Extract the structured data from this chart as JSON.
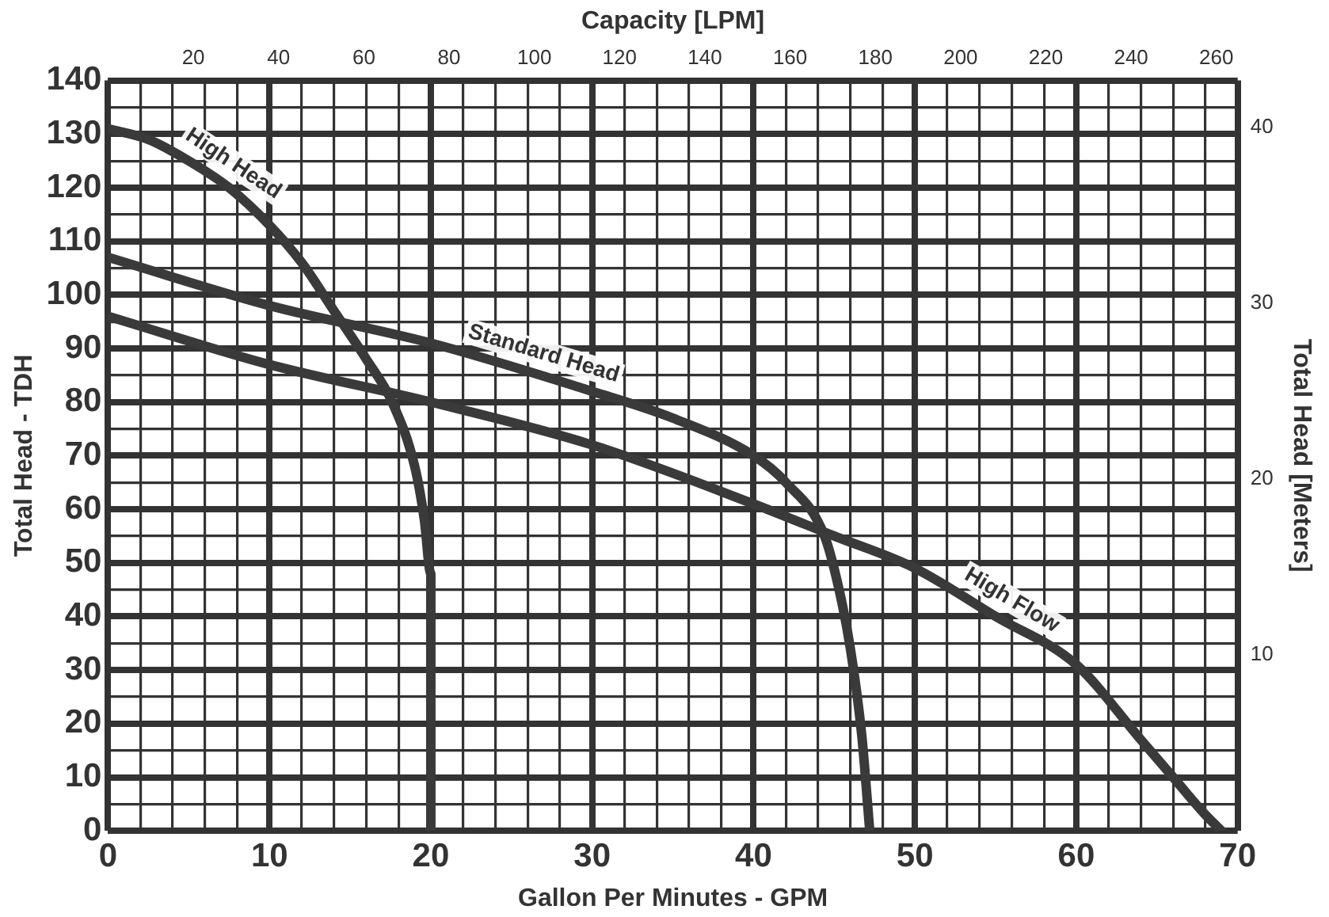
{
  "chart_data": {
    "type": "line",
    "xlabel": "Gallon Per Minutes - GPM",
    "x2label": "Capacity [LPM]",
    "ylabel": "Total Head - TDH",
    "y2label": "Total Head [Meters]",
    "xlim": [
      0,
      70
    ],
    "xticks": [
      0,
      {
        "value": 2,
        "label": null
      },
      {
        "value": 4,
        "label": null
      },
      {
        "value": 6,
        "label": null
      },
      {
        "value": 8,
        "label": null
      },
      10,
      {
        "value": 12,
        "label": null
      },
      {
        "value": 14,
        "label": null
      },
      {
        "value": 16,
        "label": null
      },
      {
        "value": 18,
        "label": null
      },
      20,
      {
        "value": 22,
        "label": null
      },
      {
        "value": 24,
        "label": null
      },
      {
        "value": 26,
        "label": null
      },
      {
        "value": 28,
        "label": null
      },
      30,
      {
        "value": 32,
        "label": null
      },
      {
        "value": 34,
        "label": null
      },
      {
        "value": 36,
        "label": null
      },
      {
        "value": 38,
        "label": null
      },
      40,
      {
        "value": 42,
        "label": null
      },
      {
        "value": 44,
        "label": null
      },
      {
        "value": 46,
        "label": null
      },
      {
        "value": 48,
        "label": null
      },
      50,
      {
        "value": 52,
        "label": null
      },
      {
        "value": 54,
        "label": null
      },
      {
        "value": 56,
        "label": null
      },
      {
        "value": 58,
        "label": null
      },
      60,
      {
        "value": 62,
        "label": null
      },
      {
        "value": 64,
        "label": null
      },
      {
        "value": 66,
        "label": null
      },
      {
        "value": 68,
        "label": null
      },
      70
    ],
    "ylim": [
      0,
      140
    ],
    "yticks": [
      0,
      {
        "value": 5,
        "label": null
      },
      10,
      {
        "value": 15,
        "label": null
      },
      20,
      {
        "value": 25,
        "label": null
      },
      30,
      {
        "value": 35,
        "label": null
      },
      40,
      {
        "value": 45,
        "label": null
      },
      50,
      {
        "value": 55,
        "label": null
      },
      60,
      {
        "value": 65,
        "label": null
      },
      70,
      {
        "value": 75,
        "label": null
      },
      80,
      {
        "value": 85,
        "label": null
      },
      90,
      {
        "value": 95,
        "label": null
      },
      100,
      {
        "value": 105,
        "label": null
      },
      110,
      {
        "value": 115,
        "label": null
      },
      120,
      {
        "value": 125,
        "label": null
      },
      130,
      {
        "value": 135,
        "label": null
      },
      140
    ],
    "x2lim": [
      0,
      265
    ],
    "x2ticks": [
      20,
      40,
      60,
      80,
      100,
      120,
      140,
      160,
      180,
      200,
      220,
      240,
      260
    ],
    "y2lim": [
      0,
      42.67
    ],
    "y2ticks": [
      10,
      20,
      30,
      40
    ],
    "grid": true,
    "legend": false,
    "marker": "none",
    "line_style": "solid",
    "series": [
      {
        "name": "High Head",
        "color": "#3a3a3a",
        "x": [
          0,
          2.5,
          5,
          7.5,
          10,
          12,
          14,
          16,
          17.6,
          19,
          19.6,
          20,
          20
        ],
        "values": [
          131,
          129,
          125,
          120,
          113,
          106,
          97,
          88,
          80,
          68,
          58,
          48,
          0
        ]
      },
      {
        "name": "Standard Head",
        "color": "#3a3a3a",
        "x": [
          0,
          10,
          20,
          30,
          35,
          40,
          42,
          44.4,
          45.3,
          46,
          46.7,
          47.2
        ],
        "values": [
          107,
          98,
          91,
          82,
          77,
          70,
          65,
          55,
          45,
          34,
          18,
          0
        ]
      },
      {
        "name": "High Flow",
        "color": "#3a3a3a",
        "x": [
          0,
          10,
          20,
          30,
          40,
          45,
          50,
          55,
          60,
          64,
          66,
          68,
          69
        ],
        "values": [
          96,
          87,
          80,
          72,
          61,
          55,
          49,
          40,
          31,
          17,
          10,
          3,
          0
        ]
      }
    ]
  }
}
